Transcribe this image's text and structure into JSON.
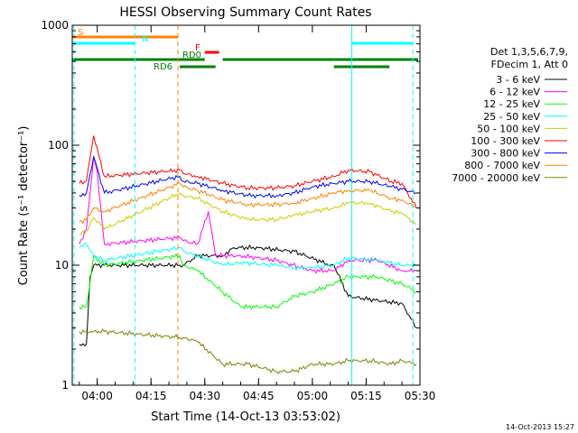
{
  "chart_data": {
    "type": "line",
    "title": "HESSI Observing Summary Count Rates",
    "xlabel": "Start Time (14-Oct-13 03:53:02)",
    "ylabel": "Count Rate (s⁻¹ detector⁻¹)",
    "y_scale": "log",
    "ylim": [
      1,
      1000
    ],
    "xlim": [
      "03:53:02",
      "05:30:00"
    ],
    "x_ticks": [
      "04:00",
      "04:15",
      "04:30",
      "04:45",
      "05:00",
      "05:15",
      "05:30"
    ],
    "y_ticks": [
      "1",
      "10",
      "100",
      "1000"
    ],
    "timestamp": "14-Oct-2013 15:27",
    "legend": {
      "placement": "right",
      "header": [
        "Det 1,3,5,6,7,9,",
        "FDecim 1, Att 0"
      ]
    },
    "series": [
      {
        "name": "3 - 6 keV",
        "color": "#000000",
        "points": [
          [
            "03:55",
            2.2
          ],
          [
            "03:57",
            2.2
          ],
          [
            "03:58",
            8
          ],
          [
            "03:59",
            10
          ],
          [
            "04:02",
            10
          ],
          [
            "04:23",
            10
          ],
          [
            "04:24",
            10
          ],
          [
            "04:28",
            12
          ],
          [
            "04:35",
            12
          ],
          [
            "04:38",
            14
          ],
          [
            "04:45",
            14
          ],
          [
            "04:55",
            13
          ],
          [
            "05:05",
            10
          ],
          [
            "05:06",
            10
          ],
          [
            "05:10",
            5.5
          ],
          [
            "05:20",
            5
          ],
          [
            "05:25",
            4.8
          ],
          [
            "05:29",
            3
          ]
        ]
      },
      {
        "name": "6 - 12 keV",
        "color": "#ff00ff",
        "points": [
          [
            "03:55",
            15
          ],
          [
            "03:57",
            20
          ],
          [
            "03:59",
            80
          ],
          [
            "04:00",
            60
          ],
          [
            "04:02",
            15
          ],
          [
            "04:23",
            17
          ],
          [
            "04:24",
            16
          ],
          [
            "04:28",
            15
          ],
          [
            "04:31",
            28
          ],
          [
            "04:33",
            12
          ],
          [
            "04:40",
            12
          ],
          [
            "04:50",
            11
          ],
          [
            "05:00",
            9
          ],
          [
            "05:06",
            9
          ],
          [
            "05:10",
            11
          ],
          [
            "05:18",
            11
          ],
          [
            "05:25",
            9
          ],
          [
            "05:29",
            9
          ]
        ]
      },
      {
        "name": "12 - 25 keV",
        "color": "#00ff00",
        "points": [
          [
            "03:55",
            4.5
          ],
          [
            "03:57",
            4.5
          ],
          [
            "03:59",
            12
          ],
          [
            "04:02",
            10
          ],
          [
            "04:23",
            12
          ],
          [
            "04:24",
            10
          ],
          [
            "04:28",
            9
          ],
          [
            "04:35",
            6
          ],
          [
            "04:40",
            4.5
          ],
          [
            "04:50",
            4.5
          ],
          [
            "04:55",
            5.5
          ],
          [
            "05:00",
            6
          ],
          [
            "05:06",
            7
          ],
          [
            "05:10",
            8
          ],
          [
            "05:18",
            8
          ],
          [
            "05:25",
            7
          ],
          [
            "05:29",
            6
          ]
        ]
      },
      {
        "name": "25 - 50 keV",
        "color": "#00ffff",
        "points": [
          [
            "03:55",
            14
          ],
          [
            "03:57",
            15
          ],
          [
            "03:59",
            12
          ],
          [
            "04:02",
            11
          ],
          [
            "04:23",
            14
          ],
          [
            "04:24",
            13
          ],
          [
            "04:28",
            12
          ],
          [
            "04:35",
            10
          ],
          [
            "04:40",
            10.5
          ],
          [
            "04:50",
            10
          ],
          [
            "04:55",
            9.5
          ],
          [
            "05:00",
            9.5
          ],
          [
            "05:06",
            10
          ],
          [
            "05:10",
            11.5
          ],
          [
            "05:18",
            11
          ],
          [
            "05:25",
            10
          ],
          [
            "05:29",
            10
          ]
        ]
      },
      {
        "name": "50 - 100 keV",
        "color": "#cccc00",
        "points": [
          [
            "03:55",
            18
          ],
          [
            "03:57",
            19
          ],
          [
            "03:59",
            25
          ],
          [
            "04:02",
            20
          ],
          [
            "04:23",
            40
          ],
          [
            "04:24",
            38
          ],
          [
            "04:28",
            36
          ],
          [
            "04:35",
            28
          ],
          [
            "04:42",
            24
          ],
          [
            "04:50",
            24
          ],
          [
            "04:55",
            26
          ],
          [
            "05:00",
            28
          ],
          [
            "05:06",
            30
          ],
          [
            "05:10",
            33
          ],
          [
            "05:16",
            33
          ],
          [
            "05:22",
            28
          ],
          [
            "05:25",
            27
          ],
          [
            "05:29",
            22
          ]
        ]
      },
      {
        "name": "100 - 300 keV",
        "color": "#ff0000",
        "points": [
          [
            "03:55",
            48
          ],
          [
            "03:57",
            50
          ],
          [
            "03:59",
            120
          ],
          [
            "04:02",
            55
          ],
          [
            "04:23",
            62
          ],
          [
            "04:24",
            58
          ],
          [
            "04:28",
            55
          ],
          [
            "04:35",
            48
          ],
          [
            "04:42",
            44
          ],
          [
            "04:50",
            44
          ],
          [
            "04:55",
            46
          ],
          [
            "05:00",
            50
          ],
          [
            "05:06",
            55
          ],
          [
            "05:10",
            62
          ],
          [
            "05:16",
            60
          ],
          [
            "05:22",
            50
          ],
          [
            "05:25",
            48
          ],
          [
            "05:29",
            30
          ]
        ]
      },
      {
        "name": "300 - 800 keV",
        "color": "#0000ff",
        "points": [
          [
            "03:55",
            38
          ],
          [
            "03:57",
            40
          ],
          [
            "03:59",
            80
          ],
          [
            "04:02",
            40
          ],
          [
            "04:23",
            55
          ],
          [
            "04:24",
            50
          ],
          [
            "04:28",
            48
          ],
          [
            "04:35",
            42
          ],
          [
            "04:42",
            38
          ],
          [
            "04:50",
            38
          ],
          [
            "04:55",
            40
          ],
          [
            "05:00",
            45
          ],
          [
            "05:06",
            48
          ],
          [
            "05:10",
            50
          ],
          [
            "05:16",
            50
          ],
          [
            "05:22",
            45
          ],
          [
            "05:25",
            43
          ],
          [
            "05:29",
            40
          ]
        ]
      },
      {
        "name": "800 - 7000 keV",
        "color": "#ff8000",
        "points": [
          [
            "03:55",
            23
          ],
          [
            "03:57",
            24
          ],
          [
            "03:59",
            30
          ],
          [
            "04:02",
            28
          ],
          [
            "04:23",
            48
          ],
          [
            "04:24",
            45
          ],
          [
            "04:28",
            42
          ],
          [
            "04:35",
            35
          ],
          [
            "04:42",
            32
          ],
          [
            "04:50",
            32
          ],
          [
            "04:55",
            33
          ],
          [
            "05:00",
            36
          ],
          [
            "05:06",
            40
          ],
          [
            "05:10",
            42
          ],
          [
            "05:16",
            42
          ],
          [
            "05:22",
            36
          ],
          [
            "05:25",
            35
          ],
          [
            "05:29",
            30
          ]
        ]
      },
      {
        "name": "7000 - 20000 keV",
        "color": "#808000",
        "points": [
          [
            "03:55",
            2.8
          ],
          [
            "03:57",
            2.8
          ],
          [
            "03:59",
            2.8
          ],
          [
            "04:02",
            2.8
          ],
          [
            "04:23",
            2.5
          ],
          [
            "04:24",
            2.5
          ],
          [
            "04:28",
            2.3
          ],
          [
            "04:35",
            1.5
          ],
          [
            "04:42",
            1.5
          ],
          [
            "04:50",
            1.3
          ],
          [
            "04:55",
            1.3
          ],
          [
            "05:00",
            1.5
          ],
          [
            "05:06",
            1.5
          ],
          [
            "05:10",
            1.6
          ],
          [
            "05:16",
            1.6
          ],
          [
            "05:22",
            1.5
          ],
          [
            "05:25",
            1.6
          ],
          [
            "05:29",
            1.5
          ]
        ]
      }
    ],
    "flag_bars": [
      {
        "label": "S",
        "color": "#ff8000",
        "level": 0,
        "ranges": [
          [
            "03:53:02",
            "04:22:30"
          ]
        ]
      },
      {
        "label": "N",
        "color": "#00ffff",
        "level": 1,
        "ranges": [
          [
            "03:53:02",
            "04:10:30"
          ],
          [
            "05:11:00",
            "05:28:00"
          ]
        ]
      },
      {
        "label": "F",
        "color": "#ff0000",
        "level": 2,
        "ranges": [
          [
            "04:30:00",
            "04:34:00"
          ]
        ]
      },
      {
        "label": "RD0",
        "color": "#008000",
        "level": 3,
        "ranges": [
          [
            "03:53:02",
            "04:30:00"
          ],
          [
            "04:35:00",
            "05:06:00"
          ],
          [
            "05:06:00",
            "05:29:30"
          ]
        ]
      },
      {
        "label": "RD6",
        "color": "#008000",
        "level": 4,
        "ranges": [
          [
            "04:23:00",
            "04:33:00"
          ],
          [
            "05:06:00",
            "05:21:30"
          ]
        ]
      }
    ],
    "vlines": [
      {
        "time": "03:53:30",
        "color": "#00ffff",
        "style": "dashed"
      },
      {
        "time": "04:10:30",
        "color": "#00ffff",
        "style": "dashed"
      },
      {
        "time": "04:22:30",
        "color": "#ff8000",
        "style": "dashed"
      },
      {
        "time": "05:11:00",
        "color": "#00ffff",
        "style": "solid"
      },
      {
        "time": "05:28:00",
        "color": "#00ffff",
        "style": "dashed"
      }
    ]
  }
}
